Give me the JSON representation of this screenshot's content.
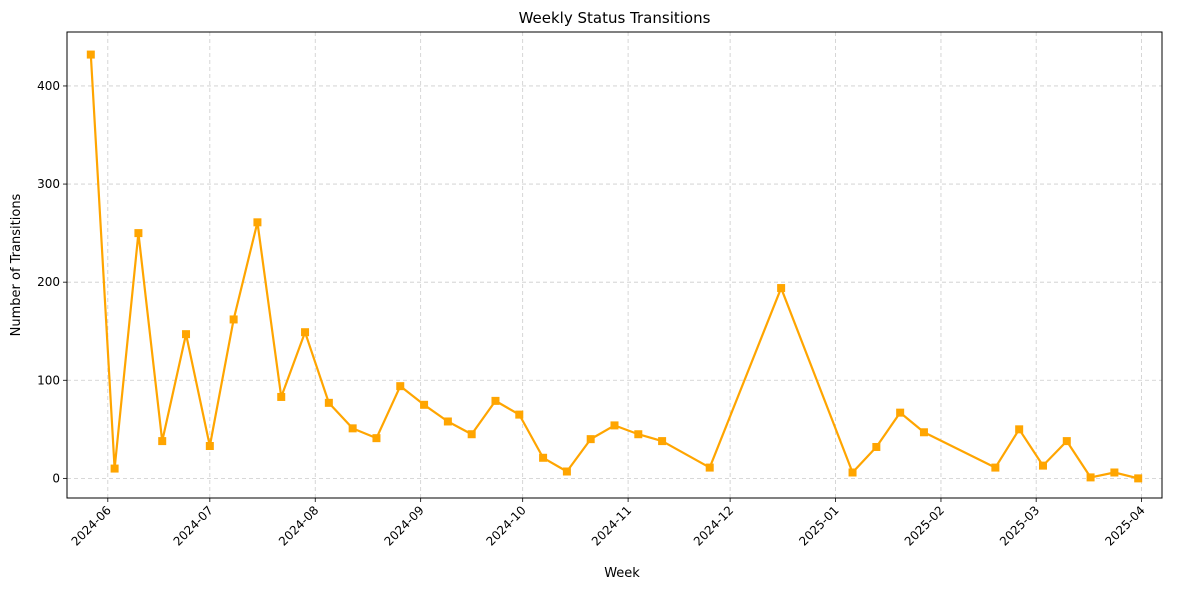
{
  "chart_data": {
    "type": "line",
    "title": "Weekly Status Transitions",
    "xlabel": "Week",
    "ylabel": "Number of Transitions",
    "x_axis_type": "date",
    "xlim": [
      "2024-05-20",
      "2025-04-07"
    ],
    "ylim": [
      -20,
      455
    ],
    "y_ticks": [
      0,
      100,
      200,
      300,
      400
    ],
    "x_ticks": [
      {
        "date": "2024-06-01",
        "label": "2024-06"
      },
      {
        "date": "2024-07-01",
        "label": "2024-07"
      },
      {
        "date": "2024-08-01",
        "label": "2024-08"
      },
      {
        "date": "2024-09-01",
        "label": "2024-09"
      },
      {
        "date": "2024-10-01",
        "label": "2024-10"
      },
      {
        "date": "2024-11-01",
        "label": "2024-11"
      },
      {
        "date": "2024-12-01",
        "label": "2024-12"
      },
      {
        "date": "2025-01-01",
        "label": "2025-01"
      },
      {
        "date": "2025-02-01",
        "label": "2025-02"
      },
      {
        "date": "2025-03-01",
        "label": "2025-03"
      },
      {
        "date": "2025-04-01",
        "label": "2025-04"
      }
    ],
    "grid": true,
    "grid_style": "dashed",
    "x_tick_rotation": 45,
    "series": [
      {
        "color": "#FFA500",
        "marker": "square",
        "points": [
          {
            "x": "2024-05-27",
            "y": 432
          },
          {
            "x": "2024-06-03",
            "y": 10
          },
          {
            "x": "2024-06-10",
            "y": 250
          },
          {
            "x": "2024-06-17",
            "y": 38
          },
          {
            "x": "2024-06-24",
            "y": 147
          },
          {
            "x": "2024-07-01",
            "y": 33
          },
          {
            "x": "2024-07-08",
            "y": 162
          },
          {
            "x": "2024-07-15",
            "y": 261
          },
          {
            "x": "2024-07-22",
            "y": 83
          },
          {
            "x": "2024-07-29",
            "y": 149
          },
          {
            "x": "2024-08-05",
            "y": 77
          },
          {
            "x": "2024-08-12",
            "y": 51
          },
          {
            "x": "2024-08-19",
            "y": 41
          },
          {
            "x": "2024-08-26",
            "y": 94
          },
          {
            "x": "2024-09-02",
            "y": 75
          },
          {
            "x": "2024-09-09",
            "y": 58
          },
          {
            "x": "2024-09-16",
            "y": 45
          },
          {
            "x": "2024-09-23",
            "y": 79
          },
          {
            "x": "2024-09-30",
            "y": 65
          },
          {
            "x": "2024-10-07",
            "y": 21
          },
          {
            "x": "2024-10-14",
            "y": 7
          },
          {
            "x": "2024-10-21",
            "y": 40
          },
          {
            "x": "2024-10-28",
            "y": 54
          },
          {
            "x": "2024-11-04",
            "y": 45
          },
          {
            "x": "2024-11-11",
            "y": 38
          },
          {
            "x": "2024-11-25",
            "y": 11
          },
          {
            "x": "2024-12-16",
            "y": 194
          },
          {
            "x": "2025-01-06",
            "y": 6
          },
          {
            "x": "2025-01-13",
            "y": 32
          },
          {
            "x": "2025-01-20",
            "y": 67
          },
          {
            "x": "2025-01-27",
            "y": 47
          },
          {
            "x": "2025-02-17",
            "y": 11
          },
          {
            "x": "2025-02-24",
            "y": 50
          },
          {
            "x": "2025-03-03",
            "y": 13
          },
          {
            "x": "2025-03-10",
            "y": 38
          },
          {
            "x": "2025-03-17",
            "y": 1
          },
          {
            "x": "2025-03-24",
            "y": 6
          },
          {
            "x": "2025-03-31",
            "y": 0
          }
        ]
      }
    ]
  }
}
